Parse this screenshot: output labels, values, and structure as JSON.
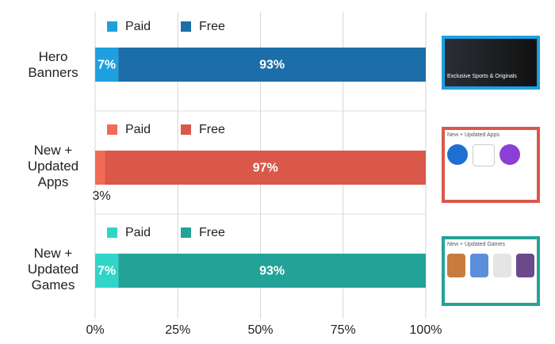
{
  "chart_data": [
    {
      "type": "bar",
      "orientation": "horizontal",
      "stacked": true,
      "categories": [
        "Hero Banners"
      ],
      "series": [
        {
          "name": "Paid",
          "color": "#1ea0e0",
          "values": [
            7
          ],
          "value_labels": [
            "7%"
          ]
        },
        {
          "name": "Free",
          "color": "#1b6ea8",
          "values": [
            93
          ],
          "value_labels": [
            "93%"
          ]
        }
      ],
      "xlim": [
        0,
        100
      ],
      "grid": true
    },
    {
      "type": "bar",
      "orientation": "horizontal",
      "stacked": true,
      "categories": [
        "New + Updated Apps"
      ],
      "series": [
        {
          "name": "Paid",
          "color": "#f26b57",
          "values": [
            3
          ],
          "value_labels": [
            "3%"
          ]
        },
        {
          "name": "Free",
          "color": "#d9584a",
          "values": [
            97
          ],
          "value_labels": [
            "97%"
          ]
        }
      ],
      "xlim": [
        0,
        100
      ],
      "grid": true
    },
    {
      "type": "bar",
      "orientation": "horizontal",
      "stacked": true,
      "categories": [
        "New + Updated Games"
      ],
      "series": [
        {
          "name": "Paid",
          "color": "#2fd6c8",
          "values": [
            7
          ],
          "value_labels": [
            "7%"
          ]
        },
        {
          "name": "Free",
          "color": "#23a397",
          "values": [
            93
          ],
          "value_labels": [
            "93%"
          ]
        }
      ],
      "xlim": [
        0,
        100
      ],
      "grid": true,
      "xticks": [
        {
          "value": 0,
          "label": "0%"
        },
        {
          "value": 25,
          "label": "25%"
        },
        {
          "value": 50,
          "label": "50%"
        },
        {
          "value": 75,
          "label": "75%"
        },
        {
          "value": 100,
          "label": "100%"
        }
      ]
    }
  ],
  "thumbnails": [
    {
      "title": "Exclusive Sports & Originals"
    },
    {
      "title": "New + Updated Apps"
    },
    {
      "title": "New + Updated Games"
    }
  ]
}
